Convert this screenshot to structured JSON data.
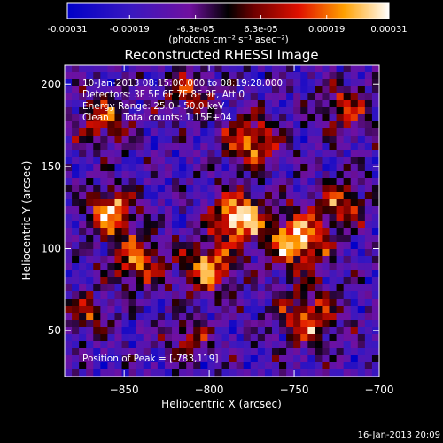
{
  "chart_data": {
    "type": "heatmap",
    "title": "Reconstructed RHESSI Image",
    "xlabel": "Heliocentric X (arcsec)",
    "ylabel": "Heliocentric Y (arcsec)",
    "xlim": [
      -885,
      -700
    ],
    "ylim": [
      22,
      212
    ],
    "xticks": [
      -850,
      -800,
      -750,
      -700
    ],
    "yticks": [
      50,
      100,
      150,
      200
    ],
    "colorbar": {
      "min": -0.00031,
      "max": 0.00031,
      "ticks": [
        -0.00031,
        -0.00019,
        -6.3e-05,
        6.3e-05,
        0.00019,
        0.00031
      ],
      "tick_labels": [
        "-0.00031",
        "-0.00019",
        "-6.3e-05",
        "6.3e-05",
        "0.00019",
        "0.00031"
      ],
      "unit_label": "(photons cm⁻² s⁻¹ asec⁻²)"
    },
    "annotations": [
      "10-Jan-2013 08:15:00.000 to 08:19:28.000",
      "Detectors: 3F 5F 6F 7F 8F 9F, Att 0",
      "Energy Range: 25.0 - 50.0 keV",
      "Clean     Total counts: 1.15E+04"
    ],
    "peak_label": "Position of Peak = [-783,119]",
    "peak": [
      -783,
      119
    ],
    "hotspots": [
      {
        "x": -783,
        "y": 119,
        "sigma": 10,
        "amp": 1.0
      },
      {
        "x": -748,
        "y": 105,
        "sigma": 12,
        "amp": 0.9
      },
      {
        "x": -800,
        "y": 88,
        "sigma": 11,
        "amp": 0.75
      },
      {
        "x": -858,
        "y": 122,
        "sigma": 10,
        "amp": 0.8
      },
      {
        "x": -842,
        "y": 92,
        "sigma": 11,
        "amp": 0.65
      },
      {
        "x": -775,
        "y": 165,
        "sigma": 11,
        "amp": 0.7
      },
      {
        "x": -742,
        "y": 58,
        "sigma": 13,
        "amp": 0.6
      },
      {
        "x": -862,
        "y": 178,
        "sigma": 11,
        "amp": 0.55
      },
      {
        "x": -812,
        "y": 195,
        "sigma": 10,
        "amp": 0.5
      },
      {
        "x": -720,
        "y": 185,
        "sigma": 11,
        "amp": 0.5
      },
      {
        "x": -812,
        "y": 45,
        "sigma": 9,
        "amp": 0.45
      },
      {
        "x": -872,
        "y": 60,
        "sigma": 9,
        "amp": 0.45
      },
      {
        "x": -722,
        "y": 128,
        "sigma": 10,
        "amp": 0.55
      }
    ]
  },
  "timestamp": "16-Jan-2013 20:09"
}
